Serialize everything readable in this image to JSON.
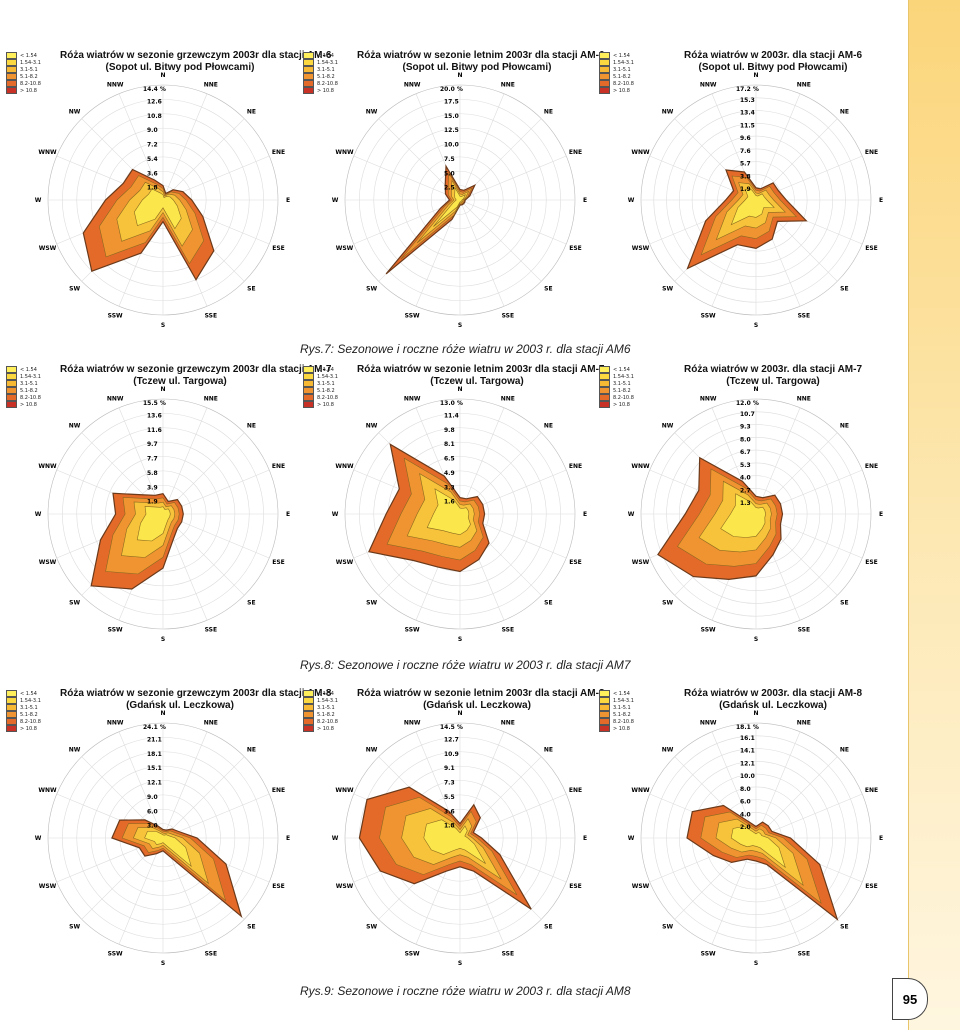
{
  "page_number": "95",
  "legend": [
    {
      "label": "< 1.54",
      "color": "#ffef5a"
    },
    {
      "label": "1.54-3.1",
      "color": "#fbd840"
    },
    {
      "label": "3.1-5.1",
      "color": "#f7b834"
    },
    {
      "label": "5.1-8.2",
      "color": "#ef9430"
    },
    {
      "label": "8.2-10.8",
      "color": "#e46a2a"
    },
    {
      "label": "> 10.8",
      "color": "#c83226"
    }
  ],
  "direction_labels": [
    "N",
    "NNE",
    "NE",
    "ENE",
    "E",
    "ESE",
    "SE",
    "SSE",
    "S",
    "SSW",
    "SW",
    "WSW",
    "W",
    "WNW",
    "NW",
    "NNW"
  ],
  "captions": [
    "Rys.7: Sezonowe i roczne róże wiatru w 2003 r. dla stacji AM6",
    "Rys.8: Sezonowe i roczne róże wiatru w 2003 r. dla stacji AM7",
    "Rys.9: Sezonowe i roczne róże wiatru w 2003 r. dla stacji AM8"
  ],
  "chart_data": [
    {
      "type": "radar",
      "title": "Róża wiatrów w sezonie grzewczym 2003r dla stacji AM-6",
      "subtitle": "(Sopot ul. Bitwy pod Płowcami)",
      "max_label": "14.4 %",
      "rings": [
        "12.6",
        "10.8",
        "9.0",
        "7.2",
        "5.4",
        "3.6",
        "1.8"
      ],
      "r_max": 16,
      "values": [
        2,
        1,
        2,
        3,
        4,
        6,
        10,
        12,
        3,
        8,
        14,
        12,
        8,
        6,
        6,
        3
      ]
    },
    {
      "type": "radar",
      "title": "Róża wiatrów w sezonie letnim 2003r dla stacji AM-6",
      "subtitle": "(Sopot ul. Bitwy pod Płowcami)",
      "max_label": "20.0 %",
      "rings": [
        "17.5",
        "15.0",
        "12.5",
        "10.0",
        "7.5",
        "5.0",
        "2.5"
      ],
      "r_max": 22,
      "values": [
        2,
        2,
        4,
        2,
        1,
        1,
        1,
        1,
        1,
        4,
        20,
        4,
        2,
        3,
        4,
        7
      ]
    },
    {
      "type": "radar",
      "title": "Róża wiatrów w 2003r. dla stacji AM-6",
      "subtitle": "(Sopot ul. Bitwy pod Płowcami)",
      "max_label": "17.2 %",
      "rings": [
        "15.3",
        "13.4",
        "11.5",
        "9.6",
        "7.6",
        "5.7",
        "3.8",
        "1.9"
      ],
      "r_max": 19,
      "values": [
        2,
        2,
        4,
        4,
        5,
        9,
        5,
        7,
        8,
        8,
        16,
        9,
        5,
        4,
        7,
        5
      ]
    },
    {
      "type": "radar",
      "title": "Róża wiatrów w sezonie grzewczym 2003r dla stacji AM-7",
      "subtitle": "(Tczew ul. Targowa)",
      "max_label": "15.5 %",
      "rings": [
        "13.6",
        "11.6",
        "9.7",
        "7.7",
        "5.8",
        "3.9",
        "1.9"
      ],
      "r_max": 17,
      "values": [
        3,
        2,
        3,
        3,
        3,
        3,
        3,
        4,
        8,
        12,
        15,
        10,
        7,
        8,
        4,
        3
      ]
    },
    {
      "type": "radar",
      "title": "Róża wiatrów w sezonie letnim 2003r dla stacji AM-7",
      "subtitle": "(Tczew ul. Targowa)",
      "max_label": "13.0 %",
      "rings": [
        "11.4",
        "9.8",
        "8.1",
        "6.5",
        "4.9",
        "3.3",
        "1.6"
      ],
      "r_max": 14,
      "values": [
        2,
        2,
        3,
        3,
        3,
        3,
        5,
        6,
        7,
        7,
        8,
        12,
        9,
        8,
        12,
        5
      ]
    },
    {
      "type": "radar",
      "title": "Róża wiatrów w 2003r. dla stacji AM-7",
      "subtitle": "(Tczew ul. Targowa)",
      "max_label": "12.0 %",
      "rings": [
        "10.7",
        "9.3",
        "8.0",
        "6.7",
        "5.3",
        "4.0",
        "2.7",
        "1.3"
      ],
      "r_max": 13,
      "values": [
        2,
        2,
        3,
        3,
        3,
        3,
        4,
        5,
        7,
        8,
        10,
        12,
        8,
        7,
        9,
        4
      ]
    },
    {
      "type": "radar",
      "title": "Róża wiatrów w sezonie grzewczym 2003r dla stacji AM-8",
      "subtitle": "(Gdańsk ul. Leczkowa)",
      "max_label": "24.1 %",
      "rings": [
        "21.1",
        "18.1",
        "15.1",
        "12.1",
        "9.0",
        "6.0",
        "3.0"
      ],
      "r_max": 27,
      "values": [
        2,
        2,
        3,
        4,
        8,
        16,
        26,
        5,
        3,
        4,
        6,
        6,
        12,
        11,
        6,
        3
      ]
    },
    {
      "type": "radar",
      "title": "Róża wiatrów w sezonie letnim 2003r dla stacji AM-8",
      "subtitle": "(Gdańsk ul. Leczkowa)",
      "max_label": "14.5 %",
      "rings": [
        "12.7",
        "10.9",
        "9.1",
        "7.3",
        "5.5",
        "3.6",
        "1.8"
      ],
      "r_max": 16,
      "values": [
        2,
        5,
        4,
        2,
        3,
        6,
        14,
        5,
        4,
        5,
        9,
        12,
        14,
        14,
        10,
        4
      ]
    },
    {
      "type": "radar",
      "title": "Róża wiatrów w 2003r. dla stacji AM-8",
      "subtitle": "(Gdańsk ul. Leczkowa)",
      "max_label": "18.1 %",
      "rings": [
        "16.1",
        "14.1",
        "12.1",
        "10.0",
        "8.0",
        "6.0",
        "4.0",
        "2.0"
      ],
      "r_max": 20,
      "values": [
        2,
        3,
        3,
        3,
        6,
        12,
        20,
        5,
        4,
        4,
        6,
        8,
        12,
        12,
        8,
        3
      ]
    }
  ]
}
